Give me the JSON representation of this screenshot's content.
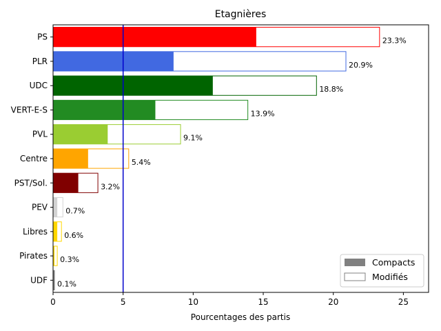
{
  "chart_data": {
    "type": "bar",
    "orientation": "horizontal",
    "title": "Etagnières",
    "xlabel": "Pourcentages des partis",
    "ylabel": "",
    "xlim": [
      0,
      26.8
    ],
    "xticks": [
      0,
      5,
      10,
      15,
      20,
      25
    ],
    "reference_line": {
      "x": 5,
      "color": "#0000cc"
    },
    "categories": [
      "PS",
      "PLR",
      "UDC",
      "VERT-E-S",
      "PVL",
      "Centre",
      "PST/Sol.",
      "PEV",
      "Libres",
      "Pirates",
      "UDF"
    ],
    "colors": [
      "#ff0000",
      "#4169e1",
      "#006400",
      "#228b22",
      "#9acd32",
      "#ffa500",
      "#800000",
      "#d3d3d3",
      "#ffd700",
      "#ffd700",
      "#808080"
    ],
    "series": [
      {
        "name": "Compacts",
        "values": [
          14.5,
          8.6,
          11.4,
          7.3,
          3.9,
          2.5,
          1.8,
          0.3,
          0.3,
          0.1,
          0.1
        ]
      },
      {
        "name": "Modifiés",
        "values": [
          23.3,
          20.9,
          18.8,
          13.9,
          9.1,
          5.4,
          3.2,
          0.7,
          0.6,
          0.3,
          0.1
        ]
      }
    ],
    "value_labels": [
      "23.3%",
      "20.9%",
      "18.8%",
      "13.9%",
      "9.1%",
      "5.4%",
      "3.2%",
      "0.7%",
      "0.6%",
      "0.3%",
      "0.1%"
    ],
    "legend": {
      "position": "bottom-right",
      "entries": [
        {
          "label": "Compacts",
          "style": "filled",
          "color": "#808080"
        },
        {
          "label": "Modifiés",
          "style": "outline",
          "color": "#808080"
        }
      ]
    },
    "grid": false
  }
}
